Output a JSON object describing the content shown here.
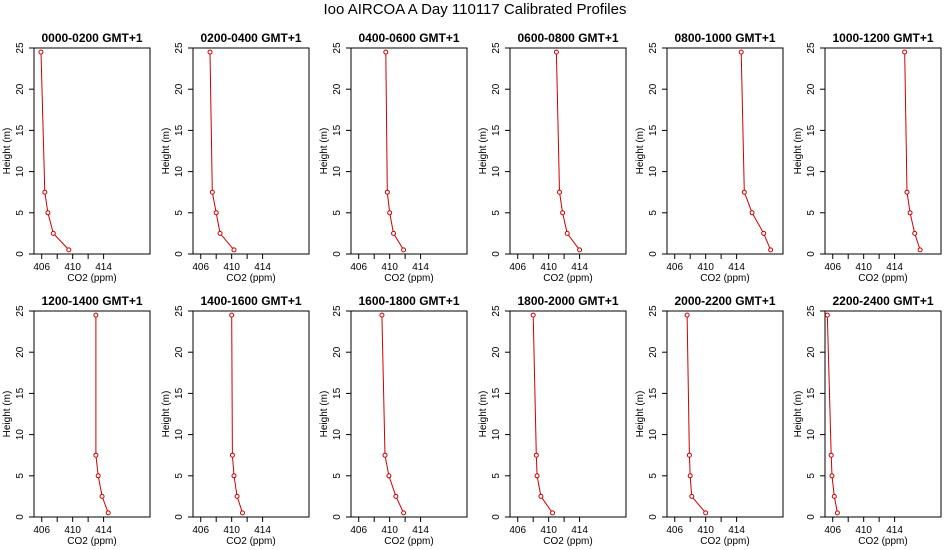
{
  "title": "Ioo AIRCOA A  Day 110117  Calibrated Profiles",
  "chart_data": {
    "type": "line",
    "x_label": "CO2 (ppm)",
    "y_label": "Height (m)",
    "xlim": [
      405,
      420
    ],
    "ylim": [
      0,
      25
    ],
    "x_ticks": [
      406,
      410,
      414
    ],
    "y_ticks": [
      0,
      5,
      10,
      15,
      20,
      25
    ],
    "line_color": "#cc0000",
    "heights": [
      0.5,
      2.5,
      5,
      7.5,
      24.5
    ],
    "panels": [
      {
        "title": "0000-0200 GMT+1",
        "co2": [
          409.5,
          407.5,
          406.8,
          406.4,
          405.9
        ]
      },
      {
        "title": "0200-0400 GMT+1",
        "co2": [
          410.3,
          408.5,
          408.0,
          407.5,
          407.2
        ]
      },
      {
        "title": "0400-0600 GMT+1",
        "co2": [
          411.8,
          410.5,
          410.0,
          409.7,
          409.5
        ]
      },
      {
        "title": "0600-0800 GMT+1",
        "co2": [
          414.0,
          412.4,
          411.8,
          411.4,
          411.0
        ]
      },
      {
        "title": "0800-1000 GMT+1",
        "co2": [
          418.4,
          417.5,
          416.0,
          415.0,
          414.6
        ]
      },
      {
        "title": "1000-1200 GMT+1",
        "co2": [
          417.3,
          416.6,
          416.0,
          415.6,
          415.3
        ]
      },
      {
        "title": "1200-1400 GMT+1",
        "co2": [
          414.6,
          413.8,
          413.3,
          413.0,
          413.0
        ]
      },
      {
        "title": "1400-1600 GMT+1",
        "co2": [
          411.4,
          410.7,
          410.3,
          410.1,
          410.0
        ]
      },
      {
        "title": "1600-1800 GMT+1",
        "co2": [
          411.8,
          410.8,
          409.9,
          409.4,
          409.0
        ]
      },
      {
        "title": "1800-2000 GMT+1",
        "co2": [
          410.5,
          409.0,
          408.5,
          408.4,
          408.0
        ]
      },
      {
        "title": "2000-2200 GMT+1",
        "co2": [
          410.0,
          408.2,
          408.0,
          407.9,
          407.6
        ]
      },
      {
        "title": "2200-2400 GMT+1",
        "co2": [
          406.6,
          406.2,
          405.9,
          405.8,
          405.3
        ]
      }
    ]
  }
}
